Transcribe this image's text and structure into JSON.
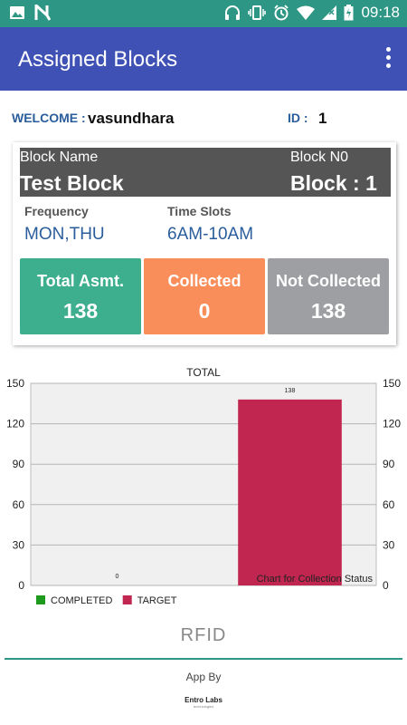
{
  "status_bar": {
    "time": "09:18",
    "icons": [
      "image-icon",
      "n-icon",
      "headphones-icon",
      "vibrate-icon",
      "alarm-icon",
      "wifi-icon",
      "signal-icon",
      "battery-charging-icon"
    ]
  },
  "app_bar": {
    "title": "Assigned Blocks",
    "menu_icon": "overflow-menu-icon"
  },
  "welcome": {
    "label": "WELCOME :",
    "value": "vasundhara",
    "id_label": "ID :",
    "id_value": "1"
  },
  "block": {
    "name_label": "Block Name",
    "name_value": "Test Block",
    "number_label": "Block N0",
    "number_value": "Block : 1",
    "frequency_label": "Frequency",
    "frequency_value": "MON,THU",
    "timeslots_label": "Time Slots",
    "timeslots_value": "6AM-10AM"
  },
  "stats": [
    {
      "label": "Total Asmt.",
      "value": "138",
      "color": "#3dae8e"
    },
    {
      "label": "Collected",
      "value": "0",
      "color": "#fa8e5a"
    },
    {
      "label": "Not Collected",
      "value": "138",
      "color": "#9e9fa2"
    }
  ],
  "chart_data": {
    "type": "bar",
    "title": "TOTAL",
    "description": "Chart for Collection Status",
    "categories": [
      "COMPLETED",
      "TARGET"
    ],
    "series": [
      {
        "name": "COMPLETED",
        "values": [
          0,
          null
        ],
        "color": "#1e9a1e"
      },
      {
        "name": "TARGET",
        "values": [
          null,
          138
        ],
        "color": "#c0264f"
      }
    ],
    "ylim": [
      0,
      150
    ],
    "yticks": [
      0,
      30,
      60,
      90,
      120,
      150
    ],
    "data_labels": [
      "0",
      "138"
    ],
    "grid": true,
    "legend_position": "bottom-left"
  },
  "footer": {
    "brand": "RFID",
    "app_by": "App By",
    "company": "Entro Labs",
    "company_tagline": "technologies"
  }
}
